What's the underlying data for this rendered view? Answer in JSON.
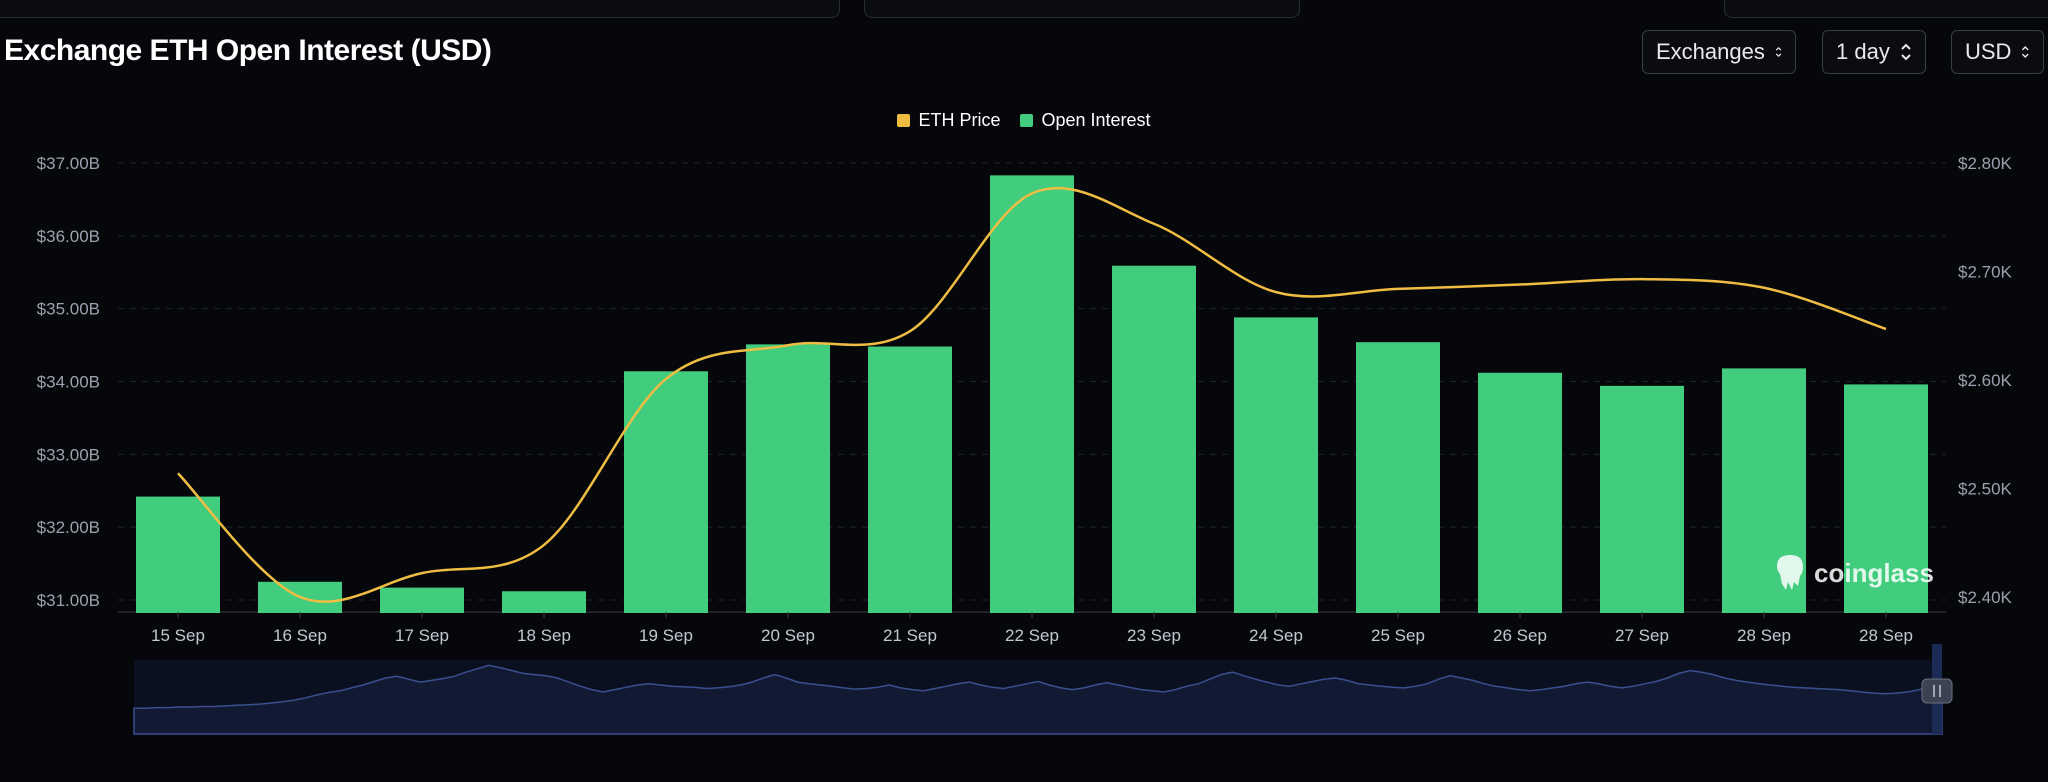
{
  "page": {
    "title": "Exchange ETH Open Interest (USD)"
  },
  "controls": {
    "exchanges": "Exchanges",
    "interval": "1 day",
    "currency": "USD"
  },
  "legend": [
    {
      "label": "ETH Price",
      "color": "#f0bd43"
    },
    {
      "label": "Open Interest",
      "color": "#41cd7d"
    }
  ],
  "watermark": "coinglass",
  "chart_data": {
    "type": "bar",
    "categories": [
      "15 Sep",
      "16 Sep",
      "17 Sep",
      "18 Sep",
      "19 Sep",
      "20 Sep",
      "21 Sep",
      "22 Sep",
      "23 Sep",
      "24 Sep",
      "25 Sep",
      "26 Sep",
      "27 Sep",
      "28 Sep",
      "28 Sep"
    ],
    "series": [
      {
        "name": "Open Interest",
        "axis": "left",
        "type": "bar",
        "color": "#41cd7d",
        "values": [
          32.42,
          31.25,
          31.17,
          31.12,
          34.14,
          34.51,
          34.48,
          36.83,
          35.59,
          34.88,
          34.54,
          34.12,
          33.94,
          34.18,
          33.96
        ]
      },
      {
        "name": "ETH Price",
        "axis": "right",
        "type": "line",
        "color": "#f0bd43",
        "values": [
          2.514,
          2.4,
          2.422,
          2.448,
          2.601,
          2.632,
          2.645,
          2.772,
          2.744,
          2.681,
          2.684,
          2.688,
          2.693,
          2.685,
          2.647
        ]
      }
    ],
    "y_left": {
      "min": 31.0,
      "max": 37.0,
      "ticks": [
        "$31.00B",
        "$32.00B",
        "$33.00B",
        "$34.00B",
        "$35.00B",
        "$36.00B",
        "$37.00B"
      ]
    },
    "y_right": {
      "min": 2.4,
      "max": 2.8,
      "ticks": [
        "$2.40K",
        "$2.50K",
        "$2.60K",
        "$2.70K",
        "$2.80K"
      ]
    },
    "grid": true,
    "legend_position": "top-center",
    "navigator": {
      "color": "#3a4f8f",
      "values": [
        0.1,
        0.1,
        0.11,
        0.11,
        0.12,
        0.12,
        0.13,
        0.13,
        0.14,
        0.15,
        0.16,
        0.17,
        0.19,
        0.21,
        0.24,
        0.28,
        0.33,
        0.37,
        0.4,
        0.45,
        0.5,
        0.56,
        0.62,
        0.65,
        0.6,
        0.55,
        0.58,
        0.61,
        0.65,
        0.72,
        0.78,
        0.84,
        0.8,
        0.75,
        0.7,
        0.68,
        0.66,
        0.62,
        0.55,
        0.48,
        0.42,
        0.38,
        0.42,
        0.46,
        0.5,
        0.52,
        0.5,
        0.48,
        0.47,
        0.46,
        0.44,
        0.45,
        0.47,
        0.5,
        0.55,
        0.62,
        0.68,
        0.62,
        0.55,
        0.52,
        0.5,
        0.48,
        0.45,
        0.43,
        0.44,
        0.46,
        0.5,
        0.45,
        0.42,
        0.4,
        0.44,
        0.48,
        0.52,
        0.55,
        0.5,
        0.46,
        0.44,
        0.48,
        0.52,
        0.56,
        0.5,
        0.45,
        0.42,
        0.45,
        0.5,
        0.54,
        0.5,
        0.46,
        0.42,
        0.4,
        0.38,
        0.42,
        0.48,
        0.52,
        0.6,
        0.68,
        0.72,
        0.66,
        0.6,
        0.55,
        0.5,
        0.48,
        0.52,
        0.56,
        0.6,
        0.62,
        0.58,
        0.52,
        0.5,
        0.48,
        0.46,
        0.45,
        0.48,
        0.52,
        0.6,
        0.66,
        0.62,
        0.58,
        0.52,
        0.48,
        0.45,
        0.42,
        0.4,
        0.42,
        0.45,
        0.48,
        0.52,
        0.55,
        0.52,
        0.48,
        0.45,
        0.48,
        0.52,
        0.56,
        0.62,
        0.7,
        0.75,
        0.72,
        0.68,
        0.62,
        0.58,
        0.55,
        0.52,
        0.5,
        0.48,
        0.46,
        0.45,
        0.44,
        0.43,
        0.42,
        0.4,
        0.38,
        0.36,
        0.35,
        0.36,
        0.38,
        0.42,
        0.46,
        0.48
      ]
    }
  }
}
